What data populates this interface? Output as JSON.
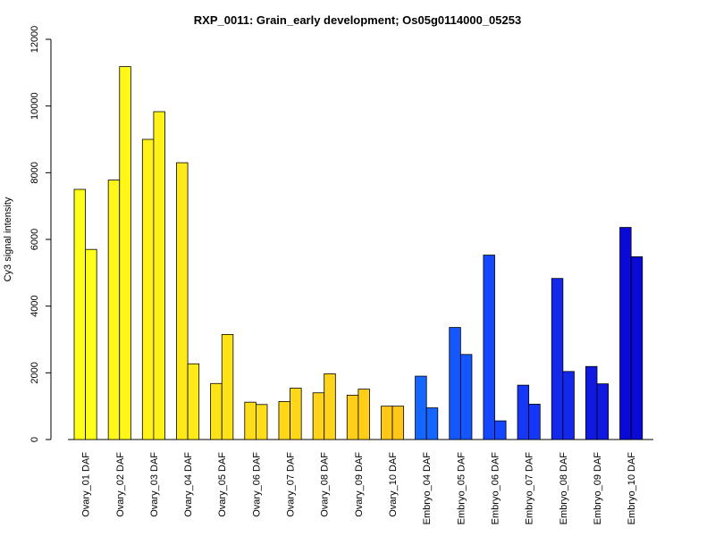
{
  "chart_data": {
    "type": "bar",
    "title": "RXP_0011: Grain_early development; Os05g0114000_05253",
    "xlabel": "",
    "ylabel": "Cy3 signal intensity",
    "ylim": [
      0,
      12000
    ],
    "yticks": [
      0,
      2000,
      4000,
      6000,
      8000,
      10000,
      12000
    ],
    "grid": false,
    "categories": [
      "Ovary_01 DAF",
      "Ovary_02 DAF",
      "Ovary_03 DAF",
      "Ovary_04 DAF",
      "Ovary_05 DAF",
      "Ovary_06 DAF",
      "Ovary_07 DAF",
      "Ovary_08 DAF",
      "Ovary_09 DAF",
      "Ovary_10 DAF",
      "Embryo_04 DAF",
      "Embryo_05 DAF",
      "Embryo_06 DAF",
      "Embryo_07 DAF",
      "Embryo_08 DAF",
      "Embryo_09 DAF",
      "Embryo_10 DAF"
    ],
    "series": [
      {
        "values": [
          7500,
          7780,
          9000,
          8300,
          1680,
          1120,
          1140,
          1400,
          1330,
          1000,
          1900,
          3360,
          5530,
          1630,
          4830,
          2190,
          6360
        ]
      },
      {
        "values": [
          5700,
          11180,
          9830,
          2270,
          3150,
          1050,
          1540,
          1970,
          1510,
          1000,
          950,
          2550,
          560,
          1060,
          2040,
          1670,
          5480
        ]
      }
    ],
    "colors": [
      "#FFFF19",
      "#FFF719",
      "#FFF219",
      "#FFEA19",
      "#FFE319",
      "#FFDD19",
      "#FFD719",
      "#FFD319",
      "#FFCE19",
      "#FFC819",
      "#1466FF",
      "#1457FF",
      "#1447FF",
      "#1438F5",
      "#1428EB",
      "#0F19E0",
      "#0A0AD6"
    ]
  }
}
